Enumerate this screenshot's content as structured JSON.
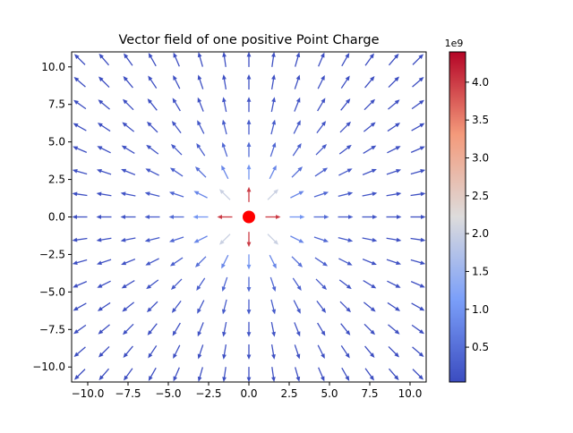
{
  "chart_data": {
    "type": "quiver",
    "title": "Vector field of one positive Point Charge",
    "xlabel": "",
    "ylabel": "",
    "xlim": [
      -11.0,
      11.0
    ],
    "ylim": [
      -11.0,
      11.0
    ],
    "xticks": [
      -10.0,
      -7.5,
      -5.0,
      -2.5,
      0.0,
      2.5,
      5.0,
      7.5,
      10.0
    ],
    "yticks": [
      -10.0,
      -7.5,
      -5.0,
      -2.5,
      0.0,
      2.5,
      5.0,
      7.5,
      10.0
    ],
    "xtick_labels": [
      "−10.0",
      "−7.5",
      "−5.0",
      "−2.5",
      "0.0",
      "2.5",
      "5.0",
      "7.5",
      "10.0"
    ],
    "ytick_labels": [
      "−10.0",
      "−7.5",
      "−5.0",
      "−2.5",
      "0.0",
      "2.5",
      "5.0",
      "7.5",
      "10.0"
    ],
    "grid": false,
    "grid_points": [
      -10.5,
      -9.0,
      -7.5,
      -6.0,
      -4.5,
      -3.0,
      -1.5,
      0.0,
      1.5,
      3.0,
      4.5,
      6.0,
      7.5,
      9.0,
      10.5
    ],
    "charge": {
      "x": 0.0,
      "y": 0.0,
      "sign": "positive",
      "color": "#ff0000"
    },
    "field_strength_k": 9000000000,
    "colormap": "coolwarm",
    "colorbar": {
      "min": 0.04,
      "max": 4.4,
      "ticks": [
        0.5,
        1.0,
        1.5,
        2.0,
        2.5,
        3.0,
        3.5,
        4.0
      ],
      "tick_labels": [
        "0.5",
        "1.0",
        "1.5",
        "2.0",
        "2.5",
        "3.0",
        "3.5",
        "4.0"
      ],
      "exponent_label": "1e9"
    }
  }
}
